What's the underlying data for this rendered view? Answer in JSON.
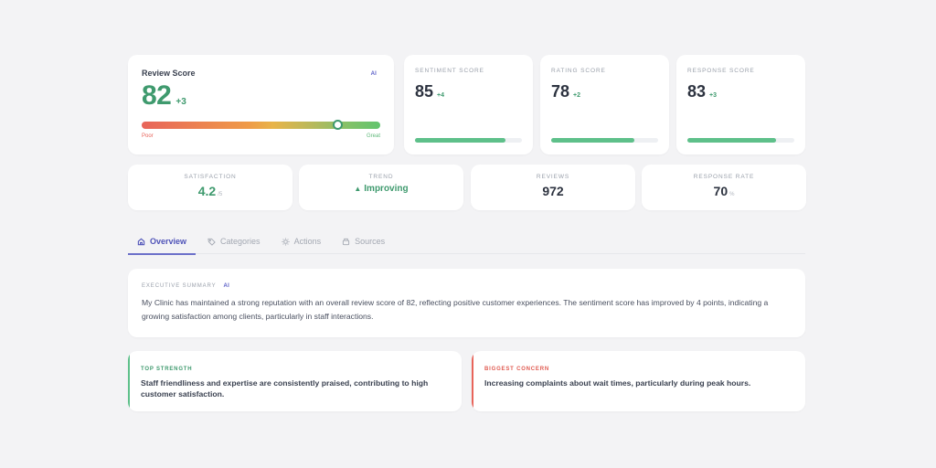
{
  "review_score": {
    "title": "Review Score",
    "ai_badge": "AI",
    "value": "82",
    "delta": "+3",
    "gauge_percent": 82,
    "gauge_low_label": "Poor",
    "gauge_high_label": "Great"
  },
  "score_cards": [
    {
      "label": "Sentiment Score",
      "value": "85",
      "delta": "+4",
      "percent": 85
    },
    {
      "label": "Rating Score",
      "value": "78",
      "delta": "+2",
      "percent": 78
    },
    {
      "label": "Response Score",
      "value": "83",
      "delta": "+3",
      "percent": 83
    }
  ],
  "stats": [
    {
      "label": "Satisfaction",
      "value": "4.2",
      "suffix": "/5"
    },
    {
      "label": "Trend",
      "icon": "▲",
      "value": "Improving"
    },
    {
      "label": "Reviews",
      "value": "972"
    },
    {
      "label": "Response Rate",
      "value": "70",
      "suffix": "%"
    }
  ],
  "tabs": [
    {
      "label": "Overview",
      "icon": "home-icon",
      "active": true
    },
    {
      "label": "Categories",
      "icon": "tag-icon",
      "active": false
    },
    {
      "label": "Actions",
      "icon": "lightbulb-icon",
      "active": false
    },
    {
      "label": "Sources",
      "icon": "inbox-icon",
      "active": false
    }
  ],
  "summary": {
    "label": "Executive Summary",
    "ai_badge": "AI",
    "text": "My Clinic has maintained a strong reputation with an overall review score of 82, reflecting positive customer experiences. The sentiment score has improved by 4 points, indicating a growing satisfaction among clients, particularly in staff interactions."
  },
  "insights": {
    "strength": {
      "label": "Top Strength",
      "text": "Staff friendliness and expertise are consistently praised, contributing to high customer satisfaction."
    },
    "concern": {
      "label": "Biggest Concern",
      "text": "Increasing complaints about wait times, particularly during peak hours."
    }
  },
  "colors": {
    "accent": "#4f53b8",
    "positive": "#3f9a6e",
    "negative": "#e8645a",
    "bar": "#5ec08a"
  }
}
